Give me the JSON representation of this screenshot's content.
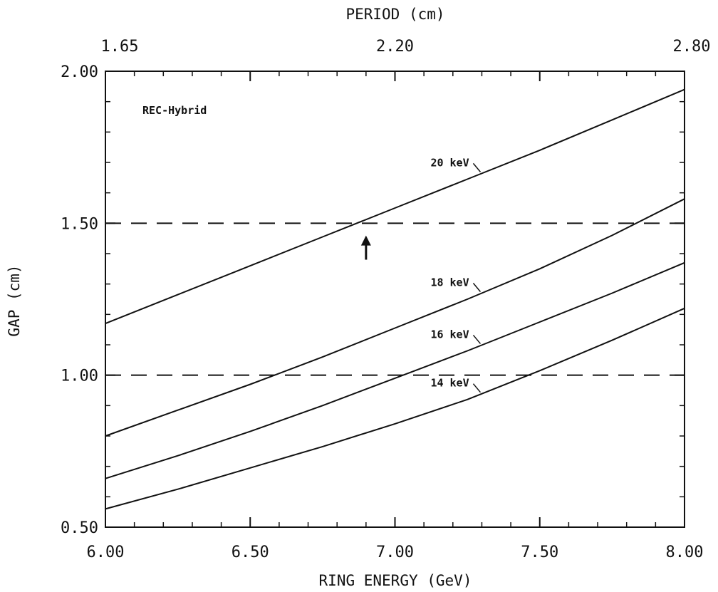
{
  "chart_data": {
    "type": "line",
    "title": "",
    "xlabel": "RING ENERGY (GeV)",
    "ylabel": "GAP (cm)",
    "top_axis_label": "PERIOD (cm)",
    "xlim": [
      6.0,
      8.0
    ],
    "ylim": [
      0.5,
      2.0
    ],
    "x_ticks": [
      "6.00",
      "6.50",
      "7.00",
      "7.50",
      "8.00"
    ],
    "y_ticks": [
      "0.50",
      "1.00",
      "1.50",
      "2.00"
    ],
    "top_ticks": [
      {
        "x": 6.0,
        "label": "1.65"
      },
      {
        "x": 7.0,
        "label": "2.20"
      },
      {
        "x": 8.0,
        "label": "2.80"
      }
    ],
    "annotation": "REC-Hybrid",
    "reference_lines": [
      {
        "y": 1.5,
        "style": "dashed"
      },
      {
        "y": 1.0,
        "style": "dashed"
      }
    ],
    "marker_arrow": {
      "x": 6.9,
      "y_from": 1.38,
      "y_to": 1.45
    },
    "series": [
      {
        "name": "20 keV",
        "x": [
          6.0,
          6.25,
          6.5,
          6.75,
          7.0,
          7.25,
          7.5,
          7.75,
          8.0
        ],
        "y": [
          1.17,
          1.265,
          1.36,
          1.455,
          1.55,
          1.645,
          1.74,
          1.84,
          1.94
        ],
        "label_at": 7.3
      },
      {
        "name": "18 keV",
        "x": [
          6.0,
          6.25,
          6.5,
          6.75,
          7.0,
          7.25,
          7.5,
          7.75,
          8.0
        ],
        "y": [
          0.8,
          0.885,
          0.97,
          1.06,
          1.155,
          1.25,
          1.35,
          1.46,
          1.58
        ],
        "label_at": 7.3
      },
      {
        "name": "16 keV",
        "x": [
          6.0,
          6.25,
          6.5,
          6.75,
          7.0,
          7.25,
          7.5,
          7.75,
          8.0
        ],
        "y": [
          0.66,
          0.735,
          0.815,
          0.9,
          0.99,
          1.08,
          1.175,
          1.27,
          1.37
        ],
        "label_at": 7.3
      },
      {
        "name": "14 keV",
        "x": [
          6.0,
          6.25,
          6.5,
          6.75,
          7.0,
          7.25,
          7.5,
          7.75,
          8.0
        ],
        "y": [
          0.56,
          0.625,
          0.695,
          0.765,
          0.84,
          0.92,
          1.015,
          1.115,
          1.22
        ],
        "label_at": 7.3
      }
    ]
  }
}
